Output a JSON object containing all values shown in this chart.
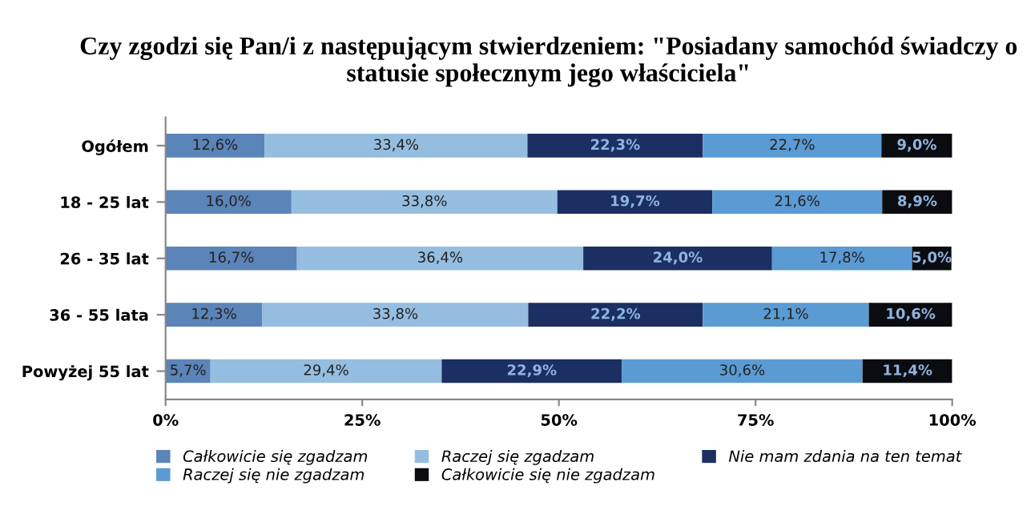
{
  "chart_data": {
    "type": "bar",
    "orientation": "horizontal",
    "stacked": true,
    "title": "Czy zgodzi się Pan/i z następującym stwierdzeniem: \"Posiadany samochód świadczy o statusie społecznym jego właściciela\"",
    "categories": [
      "Ogółem",
      "18 - 25 lat",
      "26 - 35 lat",
      "36 - 55 lata",
      "Powyżej 55 lat"
    ],
    "series": [
      {
        "name": "Całkowicie się zgadzam",
        "color": "#5b84b8",
        "values": [
          12.6,
          16.0,
          16.7,
          12.3,
          5.7
        ],
        "value_labels": [
          "12,6%",
          "16,0%",
          "16,7%",
          "12,3%",
          "5,7%"
        ]
      },
      {
        "name": "Raczej się zgadzam",
        "color": "#95bde0",
        "values": [
          33.4,
          33.8,
          36.4,
          33.8,
          29.4
        ],
        "value_labels": [
          "33,4%",
          "33,8%",
          "36,4%",
          "33,8%",
          "29,4%"
        ]
      },
      {
        "name": "Nie mam zdania na ten temat",
        "color": "#1b2f63",
        "values": [
          22.3,
          19.7,
          24.0,
          22.2,
          22.9
        ],
        "value_labels": [
          "22,3%",
          "19,7%",
          "24,0%",
          "22,2%",
          "22,9%"
        ]
      },
      {
        "name": "Raczej się nie zgadzam",
        "color": "#5b9bd3",
        "values": [
          22.7,
          21.6,
          17.8,
          21.1,
          30.6
        ],
        "value_labels": [
          "22,7%",
          "21,6%",
          "17,8%",
          "21,1%",
          "30,6%"
        ]
      },
      {
        "name": "Całkowicie się nie zgadzam",
        "color": "#0a0c10",
        "values": [
          9.0,
          8.9,
          5.0,
          10.6,
          11.4
        ],
        "value_labels": [
          "9,0%",
          "8,9%",
          "5,0%",
          "10,6%",
          "11,4%"
        ]
      }
    ],
    "xlim": [
      0,
      100
    ],
    "xticks": [
      {
        "value": 0,
        "label": "0%"
      },
      {
        "value": 25,
        "label": "25%"
      },
      {
        "value": 50,
        "label": "50%"
      },
      {
        "value": 75,
        "label": "75%"
      },
      {
        "value": 100,
        "label": "100%"
      }
    ],
    "grid": false,
    "legend": "bottom"
  }
}
